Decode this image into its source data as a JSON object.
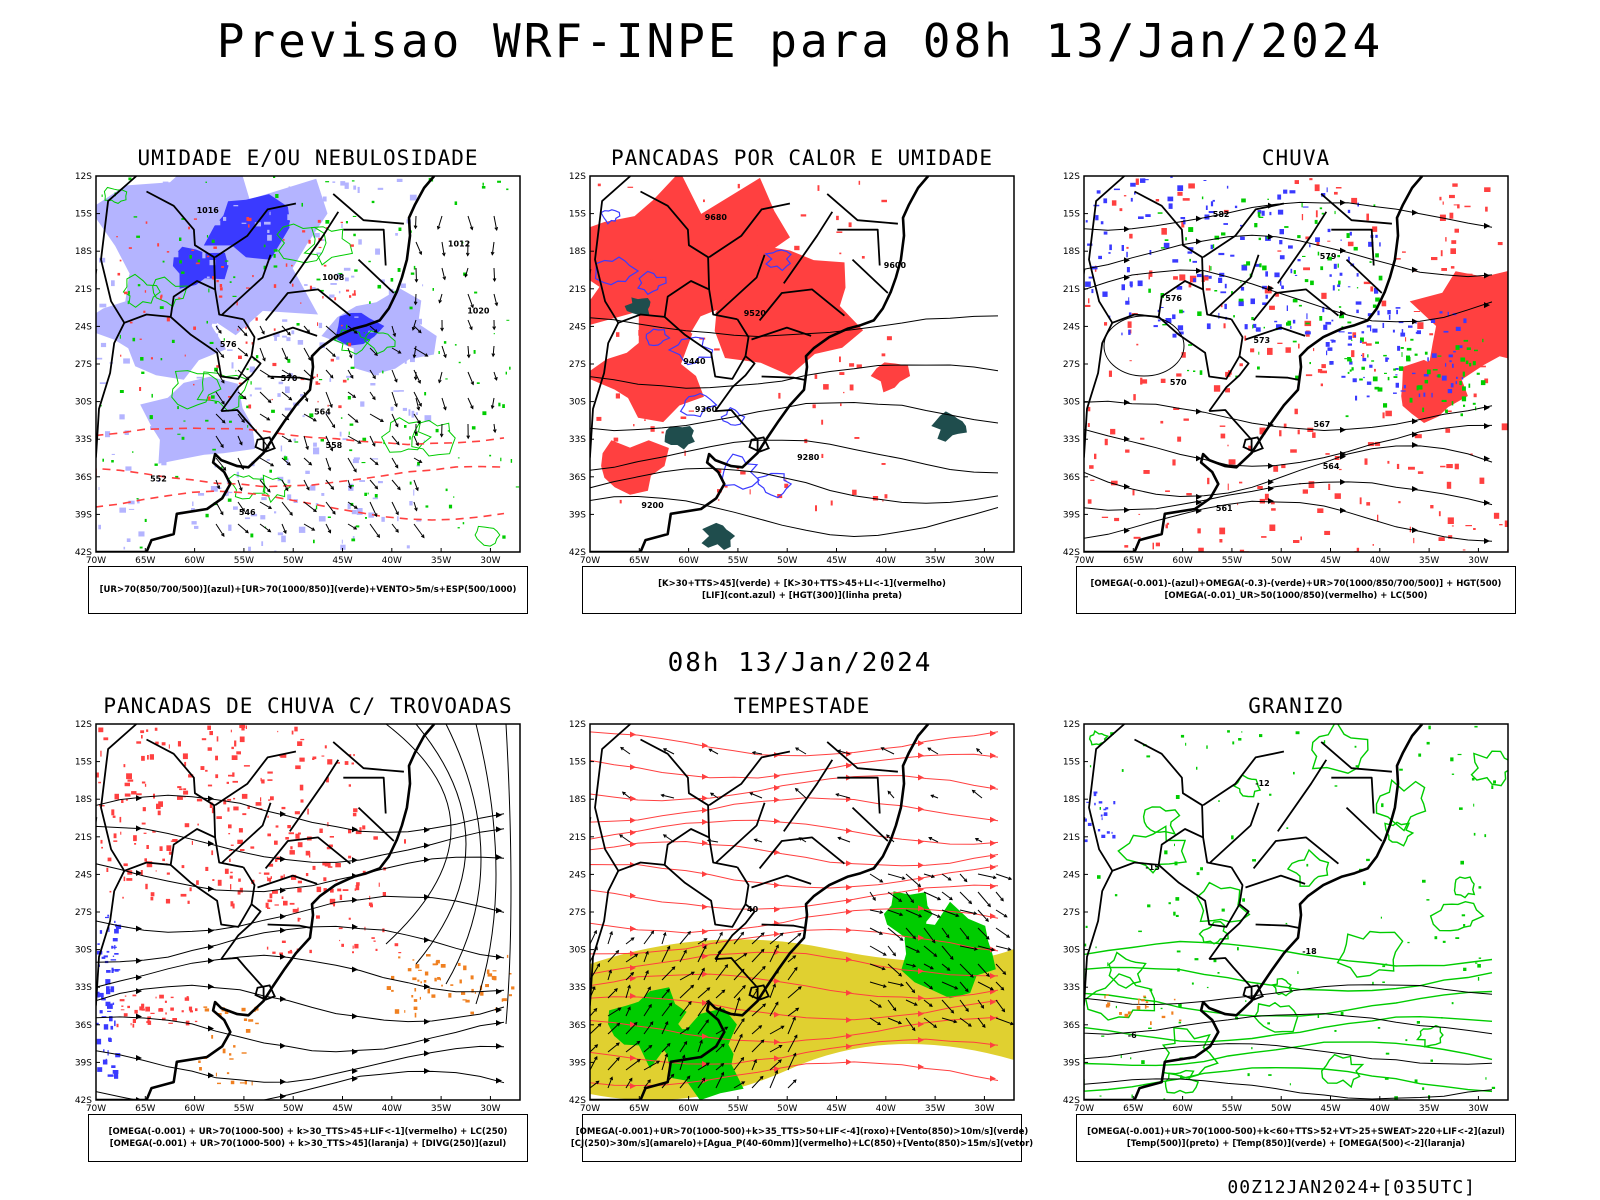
{
  "title": "Previsao WRF-INPE  para 08h 13/Jan/2024",
  "mid_title": "08h 13/Jan/2024",
  "footer": "00Z12JAN2024+[035UTC]",
  "lat_ticks": [
    "12S",
    "15S",
    "18S",
    "21S",
    "24S",
    "27S",
    "30S",
    "33S",
    "36S",
    "39S",
    "42S"
  ],
  "lon_ticks": [
    "70W",
    "65W",
    "60W",
    "55W",
    "50W",
    "45W",
    "40W",
    "35W",
    "30W"
  ],
  "colors": {
    "blue": "#3a3aff",
    "light_blue": "#b4b4ff",
    "green": "#00cc00",
    "red": "#ff4040",
    "dark_teal": "#1f4d4d",
    "orange": "#f08020",
    "yellow": "#e0d030"
  },
  "panels": [
    {
      "title": "UMIDADE E/OU NEBULOSIDADE",
      "caption": [
        "[UR>70(850/700/500)](azul)+[UR>70(1000/850)](verde)+VENTO>5m/s+ESP(500/1000)"
      ],
      "contour_labels": [
        "1016",
        "1012",
        "1008",
        "1020",
        "576",
        "570",
        "564",
        "558",
        "552",
        "546"
      ]
    },
    {
      "title": "PANCADAS POR CALOR E UMIDADE",
      "caption": [
        "[K>30+TTS>45](verde) + [K>30+TTS>45+LI<-1](vermelho)",
        "[LIF](cont.azul) + [HGT(300)](linha preta)"
      ],
      "contour_labels": [
        "9680",
        "9600",
        "9520",
        "9440",
        "9360",
        "9280",
        "9200"
      ]
    },
    {
      "title": "CHUVA",
      "caption": [
        "[OMEGA(-0.001)-(azul)+OMEGA(-0.3)-(verde)+UR>70(1000/850/700/500)] + HGT(500)",
        "[OMEGA(-0.01)_UR>50(1000/850)(vermelho) + LC(500)"
      ],
      "contour_labels": [
        "582",
        "579",
        "576",
        "573",
        "570",
        "567",
        "564",
        "561"
      ]
    },
    {
      "title": "PANCADAS DE CHUVA C/ TROVOADAS",
      "caption": [
        "[OMEGA(-0.001) + UR>70(1000-500) + k>30_TTS>45+LIF<-1](vermelho) + LC(250)",
        "[OMEGA(-0.001) + UR>70(1000-500) + k>30_TTS>45](laranja) + [DIVG(250)](azul)"
      ],
      "contour_labels": []
    },
    {
      "title": "TEMPESTADE",
      "caption": [
        "[OMEGA(-0.001)+UR>70(1000-500)+k>35_TTS>50+LIF<-4](roxo)+[Vento(850)>10m/s](verde)",
        "[CJ(250)>30m/s](amarelo)+[Agua_P(40-60mm)](vermelho)+LC(850)+[Vento(850)>15m/s](vetor)"
      ],
      "contour_labels": [
        "40"
      ]
    },
    {
      "title": "GRANIZO",
      "caption": [
        "[OMEGA(-0.001)+UR>70(1000-500)+k<60+TTS>52+VT>25+SWEAT>220+LIF<-2](azul)",
        "[Temp(500)](preto) + [Temp(850)](verde) + [OMEGA(500)<-2](laranja)"
      ],
      "contour_labels": [
        "-12",
        "-15",
        "-18",
        "-6"
      ]
    }
  ]
}
